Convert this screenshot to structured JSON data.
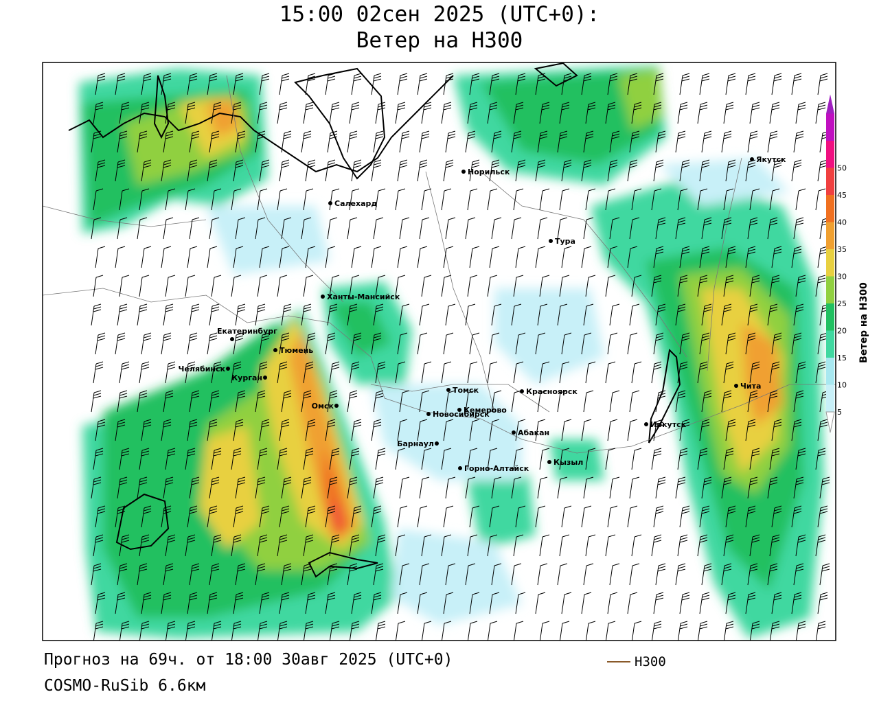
{
  "title": {
    "line1": "15:00 02сен 2025 (UTC+0):",
    "line2": "Ветер на H300"
  },
  "footer": {
    "forecast": "Прогноз на 69ч. от 18:00 30авг 2025 (UTC+0)",
    "model": "COSMO-RuSib 6.6км",
    "legend_line_label": "H300",
    "legend_line_color": "#8a5a2a"
  },
  "colorbar": {
    "title": "Ветер на H300",
    "ticks": [
      "5",
      "10",
      "15",
      "20",
      "25",
      "30",
      "35",
      "40",
      "45",
      "50"
    ],
    "colors": [
      "#c8f0f8",
      "#a8e8f0",
      "#40d8a0",
      "#20c060",
      "#90d040",
      "#e8d040",
      "#f0a030",
      "#f07020",
      "#f04040",
      "#f01080",
      "#c010c0"
    ]
  },
  "cities": [
    {
      "name": "Норильск"
    },
    {
      "name": "Якутск"
    },
    {
      "name": "Салехард"
    },
    {
      "name": "Тура"
    },
    {
      "name": "Ханты-Мансийск"
    },
    {
      "name": "Екатеринбург"
    },
    {
      "name": "Тюмень"
    },
    {
      "name": "Челябинск"
    },
    {
      "name": "Курган"
    },
    {
      "name": "Омск"
    },
    {
      "name": "Томск"
    },
    {
      "name": "Красноярск"
    },
    {
      "name": "Новосибирск"
    },
    {
      "name": "Кемерово"
    },
    {
      "name": "Абакан"
    },
    {
      "name": "Барнаул"
    },
    {
      "name": "Кызыл"
    },
    {
      "name": "Горно-Алтайск"
    },
    {
      "name": "Иркутск"
    },
    {
      "name": "Чита"
    }
  ]
}
